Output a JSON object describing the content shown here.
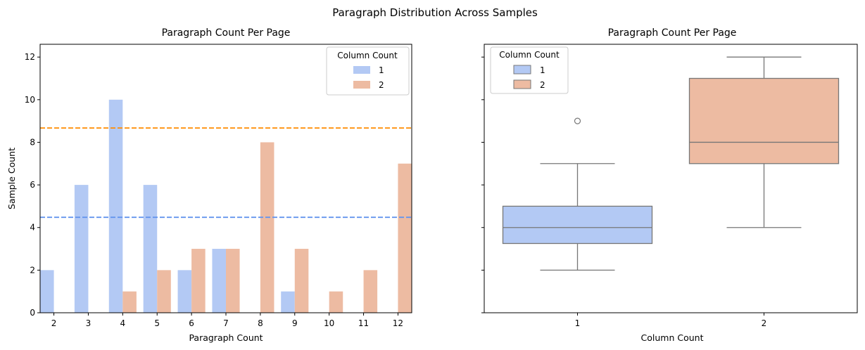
{
  "figure": {
    "suptitle": "Paragraph Distribution Across Samples"
  },
  "chart_data": [
    {
      "type": "bar",
      "title": "Paragraph Count Per Page",
      "xlabel": "Paragraph Count",
      "ylabel": "Sample Count",
      "ylim": [
        0,
        12.6
      ],
      "yticks": [
        0,
        2,
        4,
        6,
        8,
        10,
        12
      ],
      "categories": [
        "2",
        "3",
        "4",
        "5",
        "6",
        "7",
        "8",
        "9",
        "10",
        "11",
        "12"
      ],
      "series": [
        {
          "name": "1",
          "color": "#b3c9f4",
          "values": [
            2,
            6,
            10,
            6,
            2,
            3,
            0,
            1,
            0,
            0,
            0
          ]
        },
        {
          "name": "2",
          "color": "#edbba2",
          "values": [
            0,
            0,
            1,
            2,
            3,
            3,
            8,
            3,
            1,
            2,
            7
          ]
        }
      ],
      "mean_lines": [
        {
          "series": "1",
          "value": 4.48,
          "color": "#6495ed",
          "style": "dashed"
        },
        {
          "series": "2",
          "value": 8.67,
          "color": "#ff8c00",
          "style": "dashed"
        }
      ],
      "legend": {
        "title": "Column Count",
        "position": "top-right"
      },
      "grid": false
    },
    {
      "type": "box",
      "title": "Paragraph Count Per Page",
      "xlabel": "Column Count",
      "ylabel": "",
      "ylim": [
        0,
        12.6
      ],
      "shared_y": true,
      "categories": [
        "1",
        "2"
      ],
      "boxes": [
        {
          "name": "1",
          "color": "#b3c9f4",
          "whisker_low": 2,
          "q1": 3.25,
          "median": 4,
          "q3": 5,
          "whisker_high": 7,
          "outliers": [
            9
          ]
        },
        {
          "name": "2",
          "color": "#edbba2",
          "whisker_low": 4,
          "q1": 7,
          "median": 8,
          "q3": 11,
          "whisker_high": 12,
          "outliers": []
        }
      ],
      "legend": {
        "title": "Column Count",
        "position": "top-left"
      },
      "grid": false
    }
  ]
}
